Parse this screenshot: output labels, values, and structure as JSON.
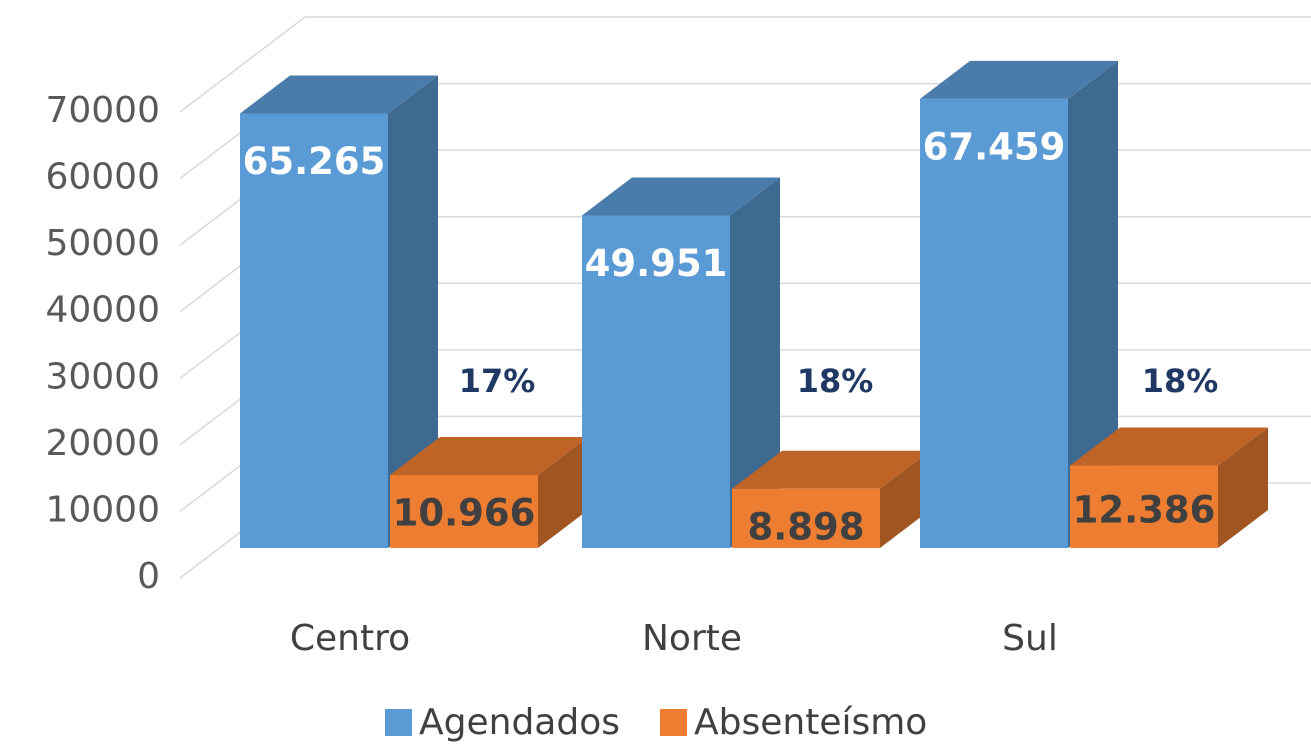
{
  "chart_data": {
    "type": "bar3d",
    "categories": [
      "Centro",
      "Norte",
      "Sul"
    ],
    "series": [
      {
        "name": "Agendados",
        "color": "#5b9bd5",
        "values": [
          65265,
          49951,
          67459
        ],
        "value_labels": [
          "65.265",
          "49.951",
          "67.459"
        ]
      },
      {
        "name": "Absenteísmo",
        "color": "#ed7d31",
        "values": [
          10966,
          8898,
          12386
        ],
        "value_labels": [
          "10.966",
          "8.898",
          "12.386"
        ]
      }
    ],
    "annotations": [
      "17%",
      "18%",
      "18%"
    ],
    "ylim": [
      0,
      70000
    ],
    "yticks": [
      0,
      10000,
      20000,
      30000,
      40000,
      50000,
      60000,
      70000
    ],
    "grid": true,
    "legend": "bottom"
  }
}
